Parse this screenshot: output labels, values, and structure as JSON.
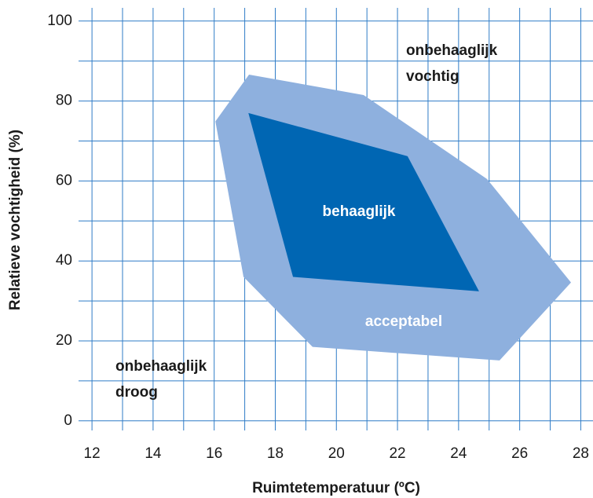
{
  "chart_data": {
    "type": "polygon",
    "x_label": "Ruimtetemperatuur (ºC)",
    "y_label": "Relatieve vochtigheid (%)",
    "xlim": [
      11.56,
      28.4
    ],
    "ylim": [
      -2.4,
      103.3
    ],
    "xticks": [
      12,
      14,
      16,
      18,
      20,
      22,
      24,
      26,
      28
    ],
    "yticks": [
      0,
      20,
      40,
      60,
      80,
      100
    ],
    "xgrid": [
      12,
      13,
      14,
      15,
      16,
      17,
      18,
      19,
      20,
      21,
      22,
      23,
      24,
      25,
      26,
      27,
      28
    ],
    "ygrid": [
      0,
      10,
      20,
      30,
      40,
      50,
      60,
      70,
      80,
      90,
      100
    ],
    "grid": true,
    "series": [
      {
        "name": "acceptabel",
        "color": "#8eb0de",
        "x": [
          16.04,
          17.14,
          20.89,
          24.93,
          27.68,
          25.34,
          19.22,
          16.96
        ],
        "y": [
          74.9,
          86.6,
          81.5,
          60.5,
          34.6,
          15.1,
          18.5,
          36.0
        ]
      },
      {
        "name": "behaaglijk",
        "color": "#0066b3",
        "x": [
          17.12,
          22.33,
          24.67,
          18.58
        ],
        "y": [
          77.0,
          66.2,
          32.4,
          36.0
        ]
      }
    ],
    "annotations": [
      {
        "lines": [
          "onbehaaglijk",
          "vochtig"
        ]
      },
      {
        "lines": [
          "onbehaaglijk",
          "droog"
        ]
      }
    ]
  }
}
